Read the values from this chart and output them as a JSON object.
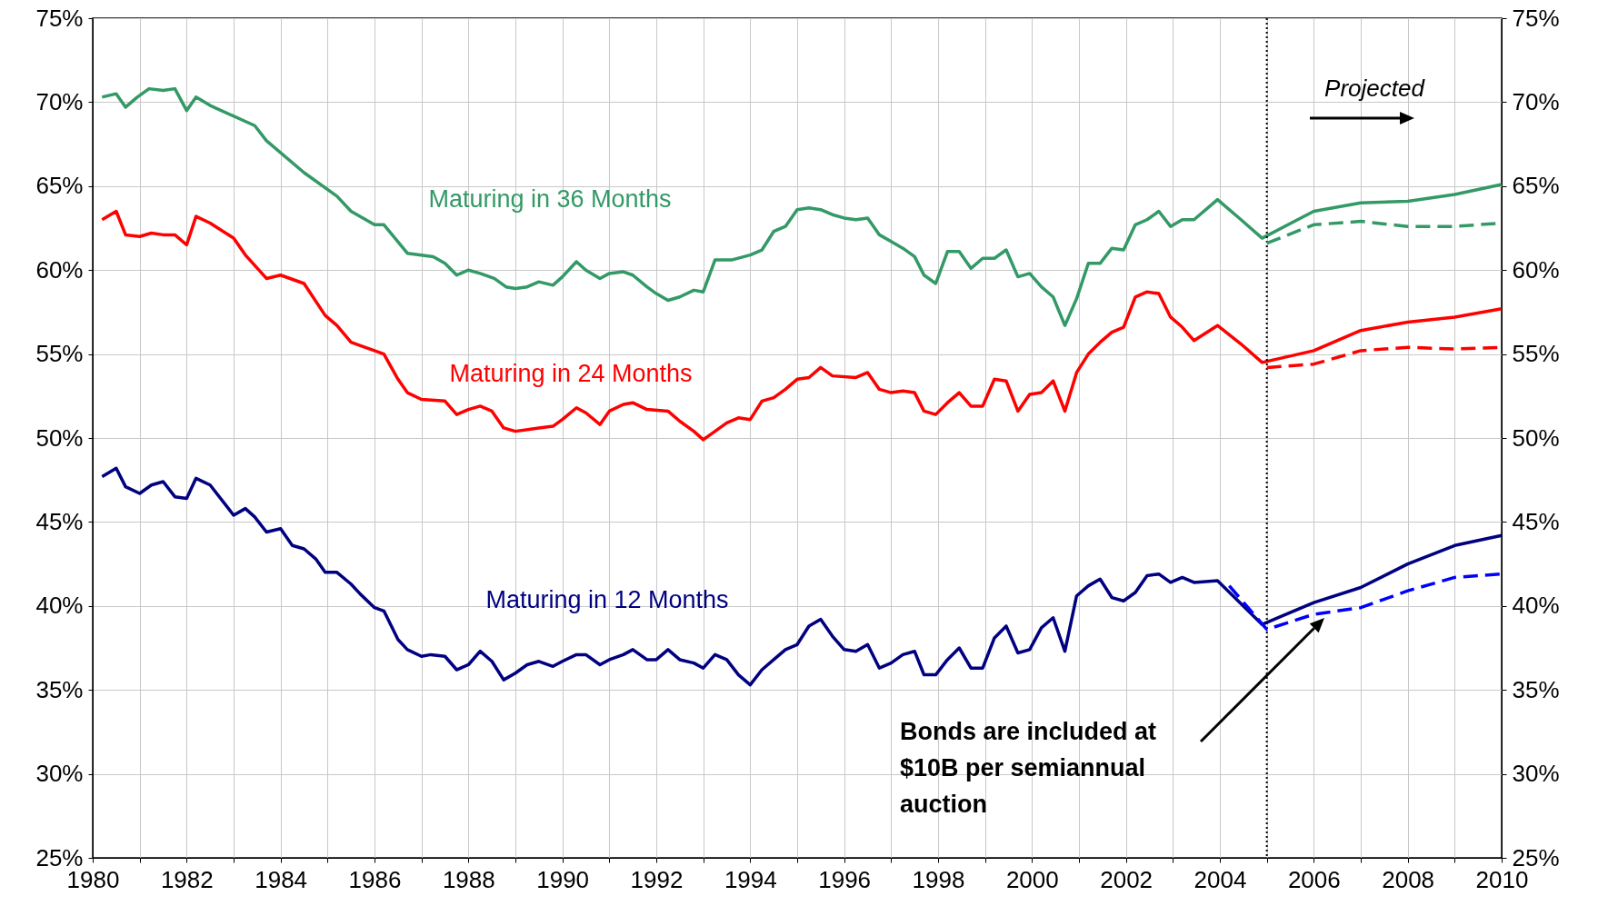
{
  "chart_data": {
    "type": "line",
    "xlim": [
      1980,
      2010
    ],
    "ylim": [
      25,
      75
    ],
    "y2lim": [
      25,
      75
    ],
    "xticks": [
      1980,
      {
        "value": 1981,
        "label": null
      },
      1982,
      {
        "value": 1983,
        "label": null
      },
      1984,
      {
        "value": 1985,
        "label": null
      },
      1986,
      {
        "value": 1987,
        "label": null
      },
      1988,
      {
        "value": 1989,
        "label": null
      },
      1990,
      {
        "value": 1991,
        "label": null
      },
      1992,
      {
        "value": 1993,
        "label": null
      },
      1994,
      {
        "value": 1995,
        "label": null
      },
      1996,
      {
        "value": 1997,
        "label": null
      },
      1998,
      {
        "value": 1999,
        "label": null
      },
      2000,
      {
        "value": 2001,
        "label": null
      },
      2002,
      {
        "value": 2003,
        "label": null
      },
      2004,
      {
        "value": 2005,
        "label": null
      },
      2006,
      {
        "value": 2007,
        "label": null
      },
      2008,
      {
        "value": 2009,
        "label": null
      },
      2010
    ],
    "yticks": [
      {
        "value": 25,
        "label": "25%"
      },
      {
        "value": 30,
        "label": "30%"
      },
      {
        "value": 35,
        "label": "35%"
      },
      {
        "value": 40,
        "label": "40%"
      },
      {
        "value": 45,
        "label": "45%"
      },
      {
        "value": 50,
        "label": "50%"
      },
      {
        "value": 55,
        "label": "55%"
      },
      {
        "value": 60,
        "label": "60%"
      },
      {
        "value": 65,
        "label": "65%"
      },
      {
        "value": 70,
        "label": "70%"
      },
      {
        "value": 75,
        "label": "75%"
      }
    ],
    "y2ticks": [
      {
        "value": 25,
        "label": "25%"
      },
      {
        "value": 30,
        "label": "30%"
      },
      {
        "value": 35,
        "label": "35%"
      },
      {
        "value": 40,
        "label": "40%"
      },
      {
        "value": 45,
        "label": "45%"
      },
      {
        "value": 50,
        "label": "50%"
      },
      {
        "value": 55,
        "label": "55%"
      },
      {
        "value": 60,
        "label": "60%"
      },
      {
        "value": 65,
        "label": "65%"
      },
      {
        "value": 70,
        "label": "70%"
      },
      {
        "value": 75,
        "label": "75%"
      }
    ],
    "grid": true,
    "series": [
      {
        "name": "Maturing in 36 Months",
        "color": "#339966",
        "line_style": "solid",
        "x": [
          1980.2,
          1980.5,
          1980.7,
          1980.95,
          1981.2,
          1981.5,
          1981.75,
          1982.0,
          1982.2,
          1982.5,
          1983.45,
          1983.7,
          1984.5,
          1985.2,
          1985.5,
          1986.0,
          1986.2,
          1986.7,
          1987.25,
          1987.5,
          1987.75,
          1988.0,
          1988.25,
          1988.55,
          1988.8,
          1989.0,
          1989.25,
          1989.5,
          1989.8,
          1990.0,
          1990.3,
          1990.5,
          1990.8,
          1991.0,
          1991.3,
          1991.5,
          1991.8,
          1992.0,
          1992.25,
          1992.5,
          1992.8,
          1993.0,
          1993.25,
          1993.6,
          1994.0,
          1994.25,
          1994.5,
          1994.75,
          1995.0,
          1995.25,
          1995.5,
          1995.75,
          1996.0,
          1996.25,
          1996.5,
          1996.75,
          1997.0,
          1997.25,
          1997.5,
          1997.7,
          1997.95,
          1998.2,
          1998.45,
          1998.7,
          1998.95,
          1999.2,
          1999.45,
          1999.7,
          1999.95,
          2000.2,
          2000.45,
          2000.7,
          2000.95,
          2001.2,
          2001.45,
          2001.7,
          2001.95,
          2002.2,
          2002.45,
          2002.7,
          2002.95,
          2003.2,
          2003.45,
          2003.95,
          2004.45,
          2004.9,
          2006,
          2007,
          2008,
          2009,
          2010
        ],
        "values": [
          70.3,
          70.5,
          69.7,
          70.3,
          70.8,
          70.7,
          70.8,
          69.5,
          70.3,
          69.8,
          68.6,
          67.7,
          65.8,
          64.4,
          63.5,
          62.7,
          62.7,
          61.0,
          60.8,
          60.4,
          59.7,
          60.0,
          59.8,
          59.5,
          59.0,
          58.9,
          59.0,
          59.3,
          59.1,
          59.6,
          60.5,
          60.0,
          59.5,
          59.8,
          59.9,
          59.7,
          59.0,
          58.6,
          58.2,
          58.4,
          58.8,
          58.7,
          60.6,
          60.6,
          60.9,
          61.2,
          62.3,
          62.6,
          63.6,
          63.7,
          63.6,
          63.3,
          63.1,
          63.0,
          63.1,
          62.1,
          61.7,
          61.3,
          60.8,
          59.7,
          59.2,
          61.1,
          61.1,
          60.1,
          60.7,
          60.7,
          61.2,
          59.6,
          59.8,
          59.0,
          58.4,
          56.7,
          58.3,
          60.4,
          60.4,
          61.3,
          61.2,
          62.7,
          63.0,
          63.5,
          62.6,
          63.0,
          63.0,
          64.2,
          63.0,
          61.9,
          63.5,
          64.0,
          64.1,
          64.5,
          65.1
        ]
      },
      {
        "name": "Maturing in 24 Months",
        "color": "#ff0000",
        "line_style": "solid",
        "x": [
          1980.2,
          1980.5,
          1980.7,
          1981.0,
          1981.25,
          1981.5,
          1981.75,
          1982.0,
          1982.2,
          1982.5,
          1983.0,
          1983.25,
          1983.7,
          1984.0,
          1984.5,
          1984.95,
          1985.2,
          1985.5,
          1985.7,
          1986.0,
          1986.2,
          1986.5,
          1986.7,
          1987.0,
          1987.5,
          1987.75,
          1988.0,
          1988.25,
          1988.5,
          1988.75,
          1989.0,
          1989.5,
          1989.8,
          1990.0,
          1990.3,
          1990.5,
          1990.8,
          1991.0,
          1991.3,
          1991.5,
          1991.8,
          1992.25,
          1992.5,
          1992.8,
          1993.0,
          1993.25,
          1993.5,
          1993.75,
          1994.0,
          1994.25,
          1994.5,
          1994.75,
          1995.0,
          1995.25,
          1995.5,
          1995.75,
          1996.25,
          1996.5,
          1996.75,
          1997.0,
          1997.25,
          1997.5,
          1997.7,
          1997.95,
          1998.2,
          1998.45,
          1998.7,
          1998.95,
          1999.2,
          1999.45,
          1999.7,
          1999.95,
          2000.2,
          2000.45,
          2000.7,
          2000.95,
          2001.2,
          2001.45,
          2001.7,
          2001.95,
          2002.2,
          2002.45,
          2002.7,
          2002.95,
          2003.2,
          2003.45,
          2003.95,
          2004.45,
          2004.9,
          2006,
          2007,
          2008,
          2009,
          2010
        ],
        "values": [
          63.0,
          63.5,
          62.1,
          62.0,
          62.2,
          62.1,
          62.1,
          61.5,
          63.2,
          62.8,
          61.9,
          60.9,
          59.5,
          59.7,
          59.2,
          57.3,
          56.7,
          55.7,
          55.5,
          55.2,
          55.0,
          53.5,
          52.7,
          52.3,
          52.2,
          51.4,
          51.7,
          51.9,
          51.6,
          50.6,
          50.4,
          50.6,
          50.7,
          51.1,
          51.8,
          51.5,
          50.8,
          51.6,
          52.0,
          52.1,
          51.7,
          51.6,
          51.0,
          50.4,
          49.9,
          50.4,
          50.9,
          51.2,
          51.1,
          52.2,
          52.4,
          52.9,
          53.5,
          53.6,
          54.2,
          53.7,
          53.6,
          53.9,
          52.9,
          52.7,
          52.8,
          52.7,
          51.6,
          51.4,
          52.1,
          52.7,
          51.9,
          51.9,
          53.5,
          53.4,
          51.6,
          52.6,
          52.7,
          53.4,
          51.6,
          53.9,
          55.0,
          55.7,
          56.3,
          56.6,
          58.4,
          58.7,
          58.6,
          57.2,
          56.6,
          55.8,
          56.7,
          55.6,
          54.5,
          55.2,
          56.4,
          56.9,
          57.2,
          57.7
        ]
      },
      {
        "name": "Maturing in 12 Months",
        "color": "#000080",
        "line_style": "solid",
        "x": [
          1980.2,
          1980.5,
          1980.7,
          1981.0,
          1981.25,
          1981.5,
          1981.75,
          1982.0,
          1982.2,
          1982.5,
          1983.0,
          1983.25,
          1983.45,
          1983.7,
          1984.0,
          1984.25,
          1984.5,
          1984.75,
          1984.95,
          1985.2,
          1985.5,
          1985.7,
          1986.0,
          1986.2,
          1986.5,
          1986.7,
          1987.0,
          1987.2,
          1987.5,
          1987.75,
          1988.0,
          1988.25,
          1988.5,
          1988.75,
          1989.0,
          1989.25,
          1989.5,
          1989.8,
          1990.0,
          1990.3,
          1990.5,
          1990.8,
          1991.0,
          1991.3,
          1991.5,
          1991.8,
          1992.0,
          1992.25,
          1992.5,
          1992.8,
          1993.0,
          1993.25,
          1993.5,
          1993.75,
          1994.0,
          1994.25,
          1994.5,
          1994.75,
          1995.0,
          1995.25,
          1995.5,
          1995.75,
          1996.0,
          1996.25,
          1996.5,
          1996.75,
          1997.0,
          1997.25,
          1997.5,
          1997.7,
          1997.95,
          1998.2,
          1998.45,
          1998.7,
          1998.95,
          1999.2,
          1999.45,
          1999.7,
          1999.95,
          2000.2,
          2000.45,
          2000.7,
          2000.95,
          2001.2,
          2001.45,
          2001.7,
          2001.95,
          2002.2,
          2002.45,
          2002.7,
          2002.95,
          2003.2,
          2003.45,
          2003.95,
          2004.9,
          2006,
          2007,
          2008,
          2009,
          2010
        ],
        "values": [
          47.7,
          48.2,
          47.1,
          46.7,
          47.2,
          47.4,
          46.5,
          46.4,
          47.6,
          47.2,
          45.4,
          45.8,
          45.3,
          44.4,
          44.6,
          43.6,
          43.4,
          42.8,
          42.0,
          42.0,
          41.3,
          40.7,
          39.9,
          39.7,
          38.0,
          37.4,
          37.0,
          37.1,
          37.0,
          36.2,
          36.5,
          37.3,
          36.7,
          35.6,
          36.0,
          36.5,
          36.7,
          36.4,
          36.7,
          37.1,
          37.1,
          36.5,
          36.8,
          37.1,
          37.4,
          36.8,
          36.8,
          37.4,
          36.8,
          36.6,
          36.3,
          37.1,
          36.8,
          35.9,
          35.3,
          36.2,
          36.8,
          37.4,
          37.7,
          38.8,
          39.2,
          38.2,
          37.4,
          37.3,
          37.7,
          36.3,
          36.6,
          37.1,
          37.3,
          35.9,
          35.9,
          36.8,
          37.5,
          36.3,
          36.3,
          38.1,
          38.8,
          37.2,
          37.4,
          38.7,
          39.3,
          37.3,
          40.6,
          41.2,
          41.6,
          40.5,
          40.3,
          40.8,
          41.8,
          41.9,
          41.4,
          41.7,
          41.4,
          41.5,
          38.9,
          40.2,
          41.1,
          42.5,
          43.6,
          44.2
        ]
      },
      {
        "color": "#339966",
        "line_style": "dashed",
        "x": [
          2005,
          2006,
          2007,
          2008,
          2009,
          2010
        ],
        "values": [
          61.6,
          62.7,
          62.9,
          62.6,
          62.6,
          62.8
        ]
      },
      {
        "color": "#ff0000",
        "line_style": "dashed",
        "x": [
          2005,
          2006,
          2007,
          2008,
          2009,
          2010
        ],
        "values": [
          54.2,
          54.4,
          55.2,
          55.4,
          55.3,
          55.4
        ]
      },
      {
        "color": "#0000ff",
        "line_style": "dashed",
        "x": [
          2004.2,
          2005,
          2006,
          2007,
          2008,
          2009,
          2010
        ],
        "values": [
          41.2,
          38.6,
          39.5,
          39.9,
          40.9,
          41.7,
          41.9
        ]
      }
    ],
    "ref_lines": [
      {
        "axis": "x",
        "value": 2005,
        "color": "#000000",
        "line_style": "dotted"
      }
    ],
    "annotations": [
      "Projected",
      "Bonds are included at $10B per semiannual auction"
    ]
  }
}
